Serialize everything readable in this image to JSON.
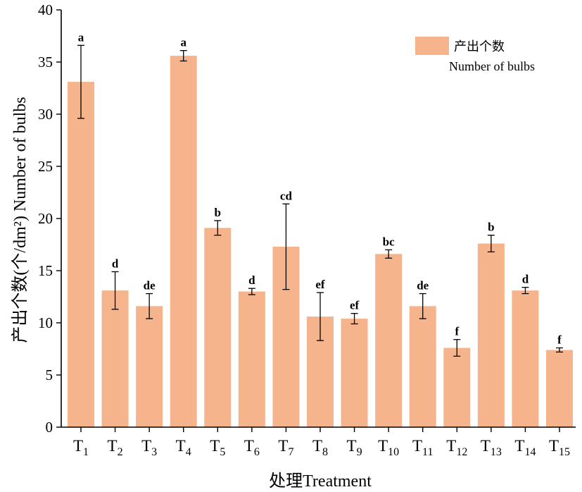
{
  "chart_data": {
    "type": "bar",
    "categories": [
      {
        "main": "T",
        "sub": "1"
      },
      {
        "main": "T",
        "sub": "2"
      },
      {
        "main": "T",
        "sub": "3"
      },
      {
        "main": "T",
        "sub": "4"
      },
      {
        "main": "T",
        "sub": "5"
      },
      {
        "main": "T",
        "sub": "6"
      },
      {
        "main": "T",
        "sub": "7"
      },
      {
        "main": "T",
        "sub": "8"
      },
      {
        "main": "T",
        "sub": "9"
      },
      {
        "main": "T",
        "sub": "10"
      },
      {
        "main": "T",
        "sub": "11"
      },
      {
        "main": "T",
        "sub": "12"
      },
      {
        "main": "T",
        "sub": "13"
      },
      {
        "main": "T",
        "sub": "14"
      },
      {
        "main": "T",
        "sub": "15"
      }
    ],
    "series": [
      {
        "name": "产出个数 Number of bulbs",
        "color": "#f5b48c",
        "values": [
          33.1,
          13.1,
          11.6,
          35.6,
          19.1,
          13.0,
          17.3,
          10.6,
          10.4,
          16.6,
          11.6,
          7.6,
          17.6,
          13.1,
          7.4
        ],
        "errors": [
          3.5,
          1.8,
          1.2,
          0.5,
          0.7,
          0.3,
          4.1,
          2.3,
          0.5,
          0.4,
          1.2,
          0.8,
          0.8,
          0.3,
          0.2
        ],
        "labels": [
          "a",
          "d",
          "de",
          "a",
          "b",
          "d",
          "cd",
          "ef",
          "ef",
          "bc",
          "de",
          "f",
          "b",
          "d",
          "f"
        ]
      }
    ],
    "xlabel": "处理Treatment",
    "ylabel": "产出个数(个/dm²) Number of bulbs",
    "ylim": [
      0,
      40
    ],
    "yticks": [
      0,
      5,
      10,
      15,
      20,
      25,
      30,
      35,
      40
    ],
    "grid": false,
    "legend": {
      "position": "top-right",
      "line1": "产出个数",
      "line2": "Number of bulbs"
    }
  }
}
